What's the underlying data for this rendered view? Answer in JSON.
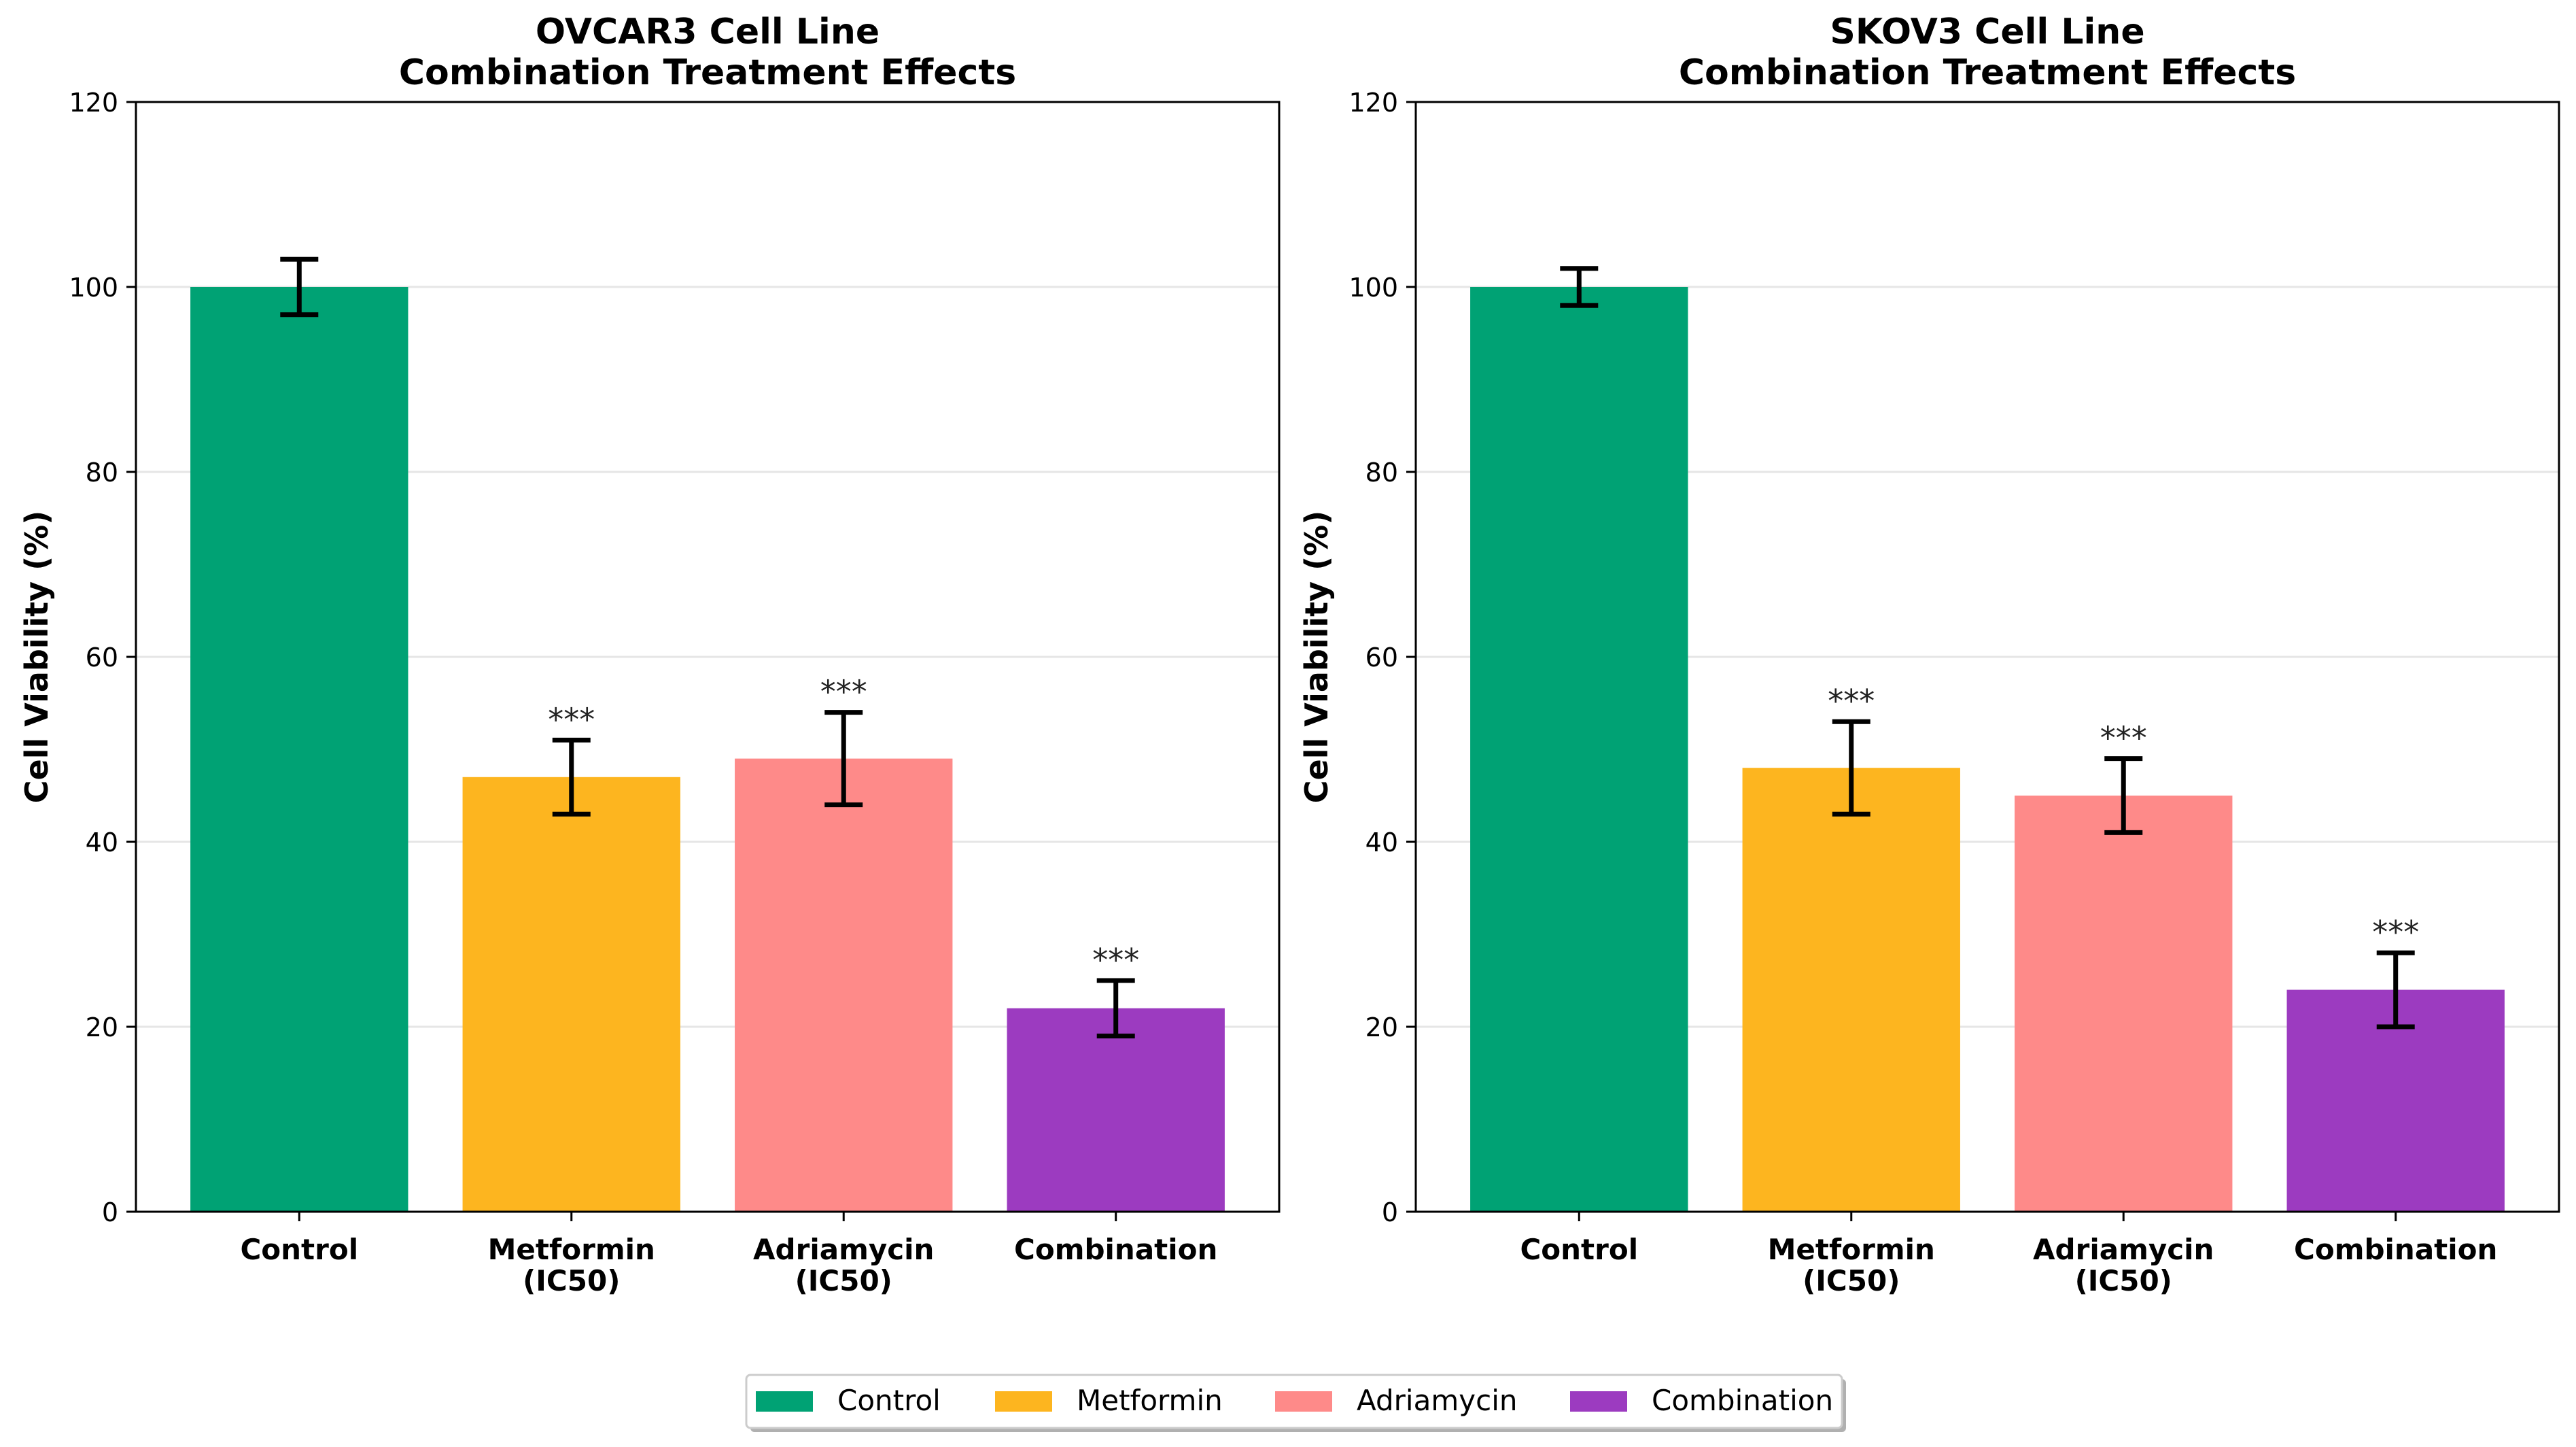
{
  "chart_data": [
    {
      "type": "bar",
      "title": [
        "OVCAR3 Cell Line",
        "Combination Treatment Effects"
      ],
      "xlabel": "",
      "ylabel": "Cell Viability (%)",
      "ylim": [
        0,
        120
      ],
      "yticks": [
        "0",
        "20",
        "40",
        "60",
        "80",
        "100",
        "120"
      ],
      "grid": "horizontal",
      "categories": [
        [
          "Control"
        ],
        [
          "Metformin",
          "(IC50)"
        ],
        [
          "Adriamycin",
          "(IC50)"
        ],
        [
          "Combination"
        ]
      ],
      "values": [
        100,
        47,
        49,
        22
      ],
      "errors": [
        3,
        4,
        5,
        3
      ],
      "annotations": [
        "",
        "***",
        "***",
        "***"
      ],
      "colors": [
        "#00a274",
        "#fdb51f",
        "#fe8a89",
        "#9c3bc0"
      ]
    },
    {
      "type": "bar",
      "title": [
        "SKOV3 Cell Line",
        "Combination Treatment Effects"
      ],
      "xlabel": "",
      "ylabel": "Cell Viability (%)",
      "ylim": [
        0,
        120
      ],
      "yticks": [
        "0",
        "20",
        "40",
        "60",
        "80",
        "100",
        "120"
      ],
      "grid": "horizontal",
      "categories": [
        [
          "Control"
        ],
        [
          "Metformin",
          "(IC50)"
        ],
        [
          "Adriamycin",
          "(IC50)"
        ],
        [
          "Combination"
        ]
      ],
      "values": [
        100,
        48,
        45,
        24
      ],
      "errors": [
        2,
        5,
        4,
        4
      ],
      "annotations": [
        "",
        "***",
        "***",
        "***"
      ],
      "colors": [
        "#00a274",
        "#fdb51f",
        "#fe8a89",
        "#9c3bc0"
      ]
    }
  ],
  "legend": {
    "position": "bottom-center",
    "entries": [
      {
        "label": "Control",
        "color": "#00a274"
      },
      {
        "label": "Metformin",
        "color": "#fdb51f"
      },
      {
        "label": "Adriamycin",
        "color": "#fe8a89"
      },
      {
        "label": "Combination",
        "color": "#9c3bc0"
      }
    ]
  }
}
